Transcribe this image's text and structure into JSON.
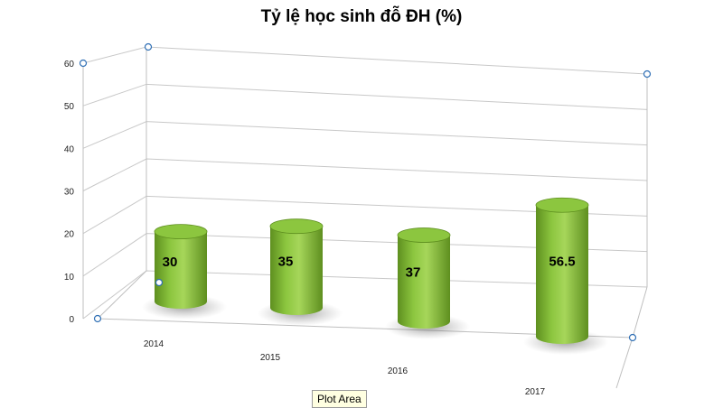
{
  "chart_data": {
    "type": "bar",
    "title": "Tỷ lệ học sinh đỗ ĐH (%)",
    "xlabel": "",
    "ylabel": "",
    "categories": [
      "2014",
      "2015",
      "2016",
      "2017"
    ],
    "values": [
      30,
      35,
      37,
      56.5
    ],
    "value_labels": [
      "30",
      "35",
      "37",
      "56.5"
    ],
    "y_ticks": [
      "0",
      "10",
      "20",
      "30",
      "40",
      "50",
      "60"
    ],
    "ylim": [
      0,
      60
    ],
    "grid": true,
    "legend": "none",
    "shape": "3d-cylinder",
    "bar_color": "#8cc63f",
    "bar_dark": "#5e8f1f",
    "bar_top": "#a6d65a"
  },
  "hover_tooltip": "Plot Area"
}
